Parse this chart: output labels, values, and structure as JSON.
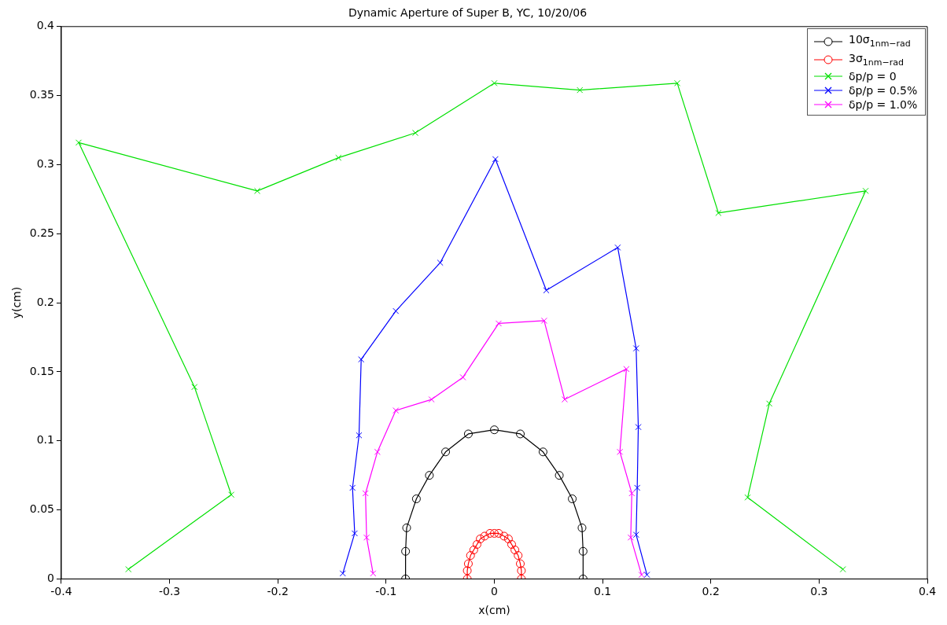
{
  "chart_data": {
    "type": "line",
    "title": "Dynamic Aperture of Super B, YC, 10/20/06",
    "xlabel": "x(cm)",
    "ylabel": "y(cm)",
    "xlim": [
      -0.4,
      0.4
    ],
    "xticks": [
      -0.4,
      -0.3,
      -0.2,
      -0.1,
      0,
      0.1,
      0.2,
      0.3,
      0.4
    ],
    "ylim": [
      0,
      0.4
    ],
    "yticks": [
      0,
      0.05,
      0.1,
      0.15,
      0.2,
      0.25,
      0.3,
      0.35,
      0.4
    ],
    "grid": false,
    "legend": "top right",
    "series": [
      {
        "name": "10σ$_{1nm−rad}$",
        "color": "#000000",
        "marker": "circle",
        "x": [
          -0.082,
          -0.082,
          -0.081,
          -0.072,
          -0.06,
          -0.045,
          -0.024,
          0,
          0.024,
          0.045,
          0.06,
          0.072,
          0.081,
          0.082,
          0.082
        ],
        "values": [
          0,
          0.02,
          0.037,
          0.058,
          0.075,
          0.092,
          0.105,
          0.108,
          0.105,
          0.092,
          0.075,
          0.058,
          0.037,
          0.02,
          0
        ]
      },
      {
        "name": "3σ$_{1nm−rad}$",
        "color": "#ff0000",
        "marker": "circle",
        "x": [
          -0.025,
          -0.025,
          -0.024,
          -0.022,
          -0.019,
          -0.016,
          -0.013,
          -0.009,
          -0.004,
          0,
          0.004,
          0.009,
          0.013,
          0.016,
          0.019,
          0.022,
          0.024,
          0.025,
          0.025
        ],
        "values": [
          0,
          0.006,
          0.011,
          0.017,
          0.021,
          0.025,
          0.029,
          0.031,
          0.033,
          0.033,
          0.033,
          0.031,
          0.029,
          0.025,
          0.021,
          0.017,
          0.011,
          0.006,
          0
        ]
      },
      {
        "name": "δp/p = 0",
        "color": "#00e000",
        "marker": "cross",
        "x": [
          -0.338,
          -0.243,
          -0.277,
          -0.384,
          -0.219,
          -0.144,
          -0.073,
          0,
          0.079,
          0.169,
          0.207,
          0.343,
          0.254,
          0.234,
          0.322
        ],
        "values": [
          0.007,
          0.061,
          0.139,
          0.316,
          0.281,
          0.305,
          0.323,
          0.359,
          0.354,
          0.359,
          0.265,
          0.281,
          0.127,
          0.059,
          0.007
        ]
      },
      {
        "name": "δp/p = 0.5%",
        "color": "#0000ff",
        "marker": "cross",
        "x": [
          -0.14,
          -0.129,
          -0.131,
          -0.125,
          -0.123,
          -0.091,
          -0.05,
          0.001,
          0.048,
          0.114,
          0.131,
          0.133,
          0.132,
          0.131,
          0.141
        ],
        "values": [
          0.004,
          0.033,
          0.066,
          0.104,
          0.159,
          0.194,
          0.229,
          0.304,
          0.209,
          0.24,
          0.167,
          0.11,
          0.066,
          0.032,
          0.003
        ]
      },
      {
        "name": "δp/p = 1.0%",
        "color": "#ff00ff",
        "marker": "cross",
        "x": [
          -0.112,
          -0.118,
          -0.119,
          -0.108,
          -0.091,
          -0.058,
          -0.029,
          0.004,
          0.046,
          0.065,
          0.122,
          0.116,
          0.127,
          0.126,
          0.136
        ],
        "values": [
          0.004,
          0.03,
          0.062,
          0.092,
          0.122,
          0.13,
          0.146,
          0.185,
          0.187,
          0.13,
          0.152,
          0.092,
          0.062,
          0.03,
          0.003
        ]
      }
    ]
  }
}
